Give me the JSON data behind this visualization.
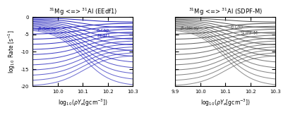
{
  "left_title": "$^{31}$Mg <=> $^{31}$Al (EEdf1)",
  "right_title": "$^{31}$Mg <=> $^{31}$Al (SDPF-M)",
  "ylabel": "$\\log_{10}$ Rate [s$^{-1}$]",
  "xlabel": "$\\log_{10}(\\rho Y_e$[gcm$^{-3}$])",
  "ylim": [
    -20,
    0
  ],
  "left_xlim": [
    9.9,
    10.3
  ],
  "right_xlim": [
    9.9,
    10.3
  ],
  "left_xticks": [
    10.0,
    10.1,
    10.2,
    10.3
  ],
  "right_xticks": [
    9.9,
    10.0,
    10.1,
    10.2,
    10.3
  ],
  "yticks": [
    0,
    -5,
    -10,
    -15,
    -20
  ],
  "n_lines": 12,
  "beta_label": "$\\beta$-decay",
  "ecap_label": "e-cap.",
  "left_interaction_label": "EEdf1",
  "right_interaction_label": "SDPF-M",
  "line_color_left": "#2222bb",
  "line_color_right": "#555555",
  "background_color": "#ffffff"
}
